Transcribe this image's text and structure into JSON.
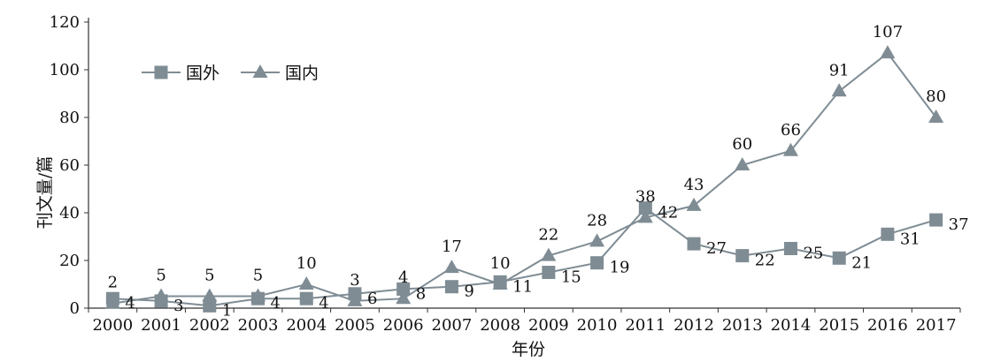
{
  "chart_data": {
    "type": "line",
    "categories": [
      "2000",
      "2001",
      "2002",
      "2003",
      "2004",
      "2005",
      "2006",
      "2007",
      "2008",
      "2009",
      "2010",
      "2011",
      "2012",
      "2013",
      "2014",
      "2015",
      "2016",
      "2017"
    ],
    "series": [
      {
        "name": "国外",
        "marker": "square",
        "color": "#7f8c94",
        "values": [
          4,
          3,
          1,
          4,
          4,
          6,
          8,
          9,
          11,
          15,
          19,
          42,
          27,
          22,
          25,
          21,
          31,
          37
        ]
      },
      {
        "name": "国内",
        "marker": "triangle",
        "color": "#7f8c94",
        "values": [
          2,
          5,
          5,
          5,
          10,
          3,
          4,
          17,
          10,
          22,
          28,
          38,
          43,
          60,
          66,
          91,
          107,
          80
        ]
      }
    ],
    "xlabel": "年份",
    "ylabel": "刊文量/篇",
    "ylim": [
      0,
      120
    ],
    "yticks": [
      "0",
      "20",
      "40",
      "60",
      "80",
      "100",
      "120"
    ],
    "grid": false,
    "legend_position": "top-left"
  }
}
